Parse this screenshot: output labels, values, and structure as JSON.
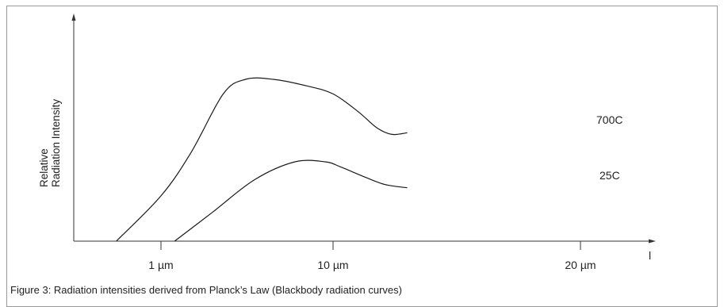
{
  "chart_data": {
    "type": "line",
    "x_scale": "log",
    "ylabel": [
      "Relative",
      "Radiation Intensity"
    ],
    "x_axis_symbol": "l",
    "ticks": [
      {
        "value": 1,
        "label": "1 µm"
      },
      {
        "value": 10,
        "label": "10 µm"
      },
      {
        "value": 20,
        "label": "20 µm"
      }
    ],
    "series": [
      {
        "name": "700C",
        "color": "#1a1a1a",
        "points": [
          [
            0.55,
            0.0
          ],
          [
            1.0,
            0.28
          ],
          [
            1.5,
            0.55
          ],
          [
            2.3,
            0.91
          ],
          [
            3.1,
            1.0
          ],
          [
            4.5,
            1.0
          ],
          [
            7,
            0.96
          ],
          [
            10,
            0.91
          ],
          [
            14,
            0.8
          ],
          [
            18,
            0.7
          ],
          [
            22,
            0.66
          ],
          [
            27,
            0.67
          ]
        ]
      },
      {
        "name": "25C",
        "color": "#1a1a1a",
        "points": [
          [
            1.2,
            0.0
          ],
          [
            2,
            0.18
          ],
          [
            3.5,
            0.38
          ],
          [
            6,
            0.49
          ],
          [
            9,
            0.49
          ],
          [
            11,
            0.46
          ],
          [
            15,
            0.4
          ],
          [
            20,
            0.35
          ],
          [
            27,
            0.33
          ]
        ]
      }
    ],
    "grid": false,
    "legend": "none",
    "caption": "Figure 3: Radiation intensities derived from Planck’s Law (Blackbody radiation curves)"
  }
}
